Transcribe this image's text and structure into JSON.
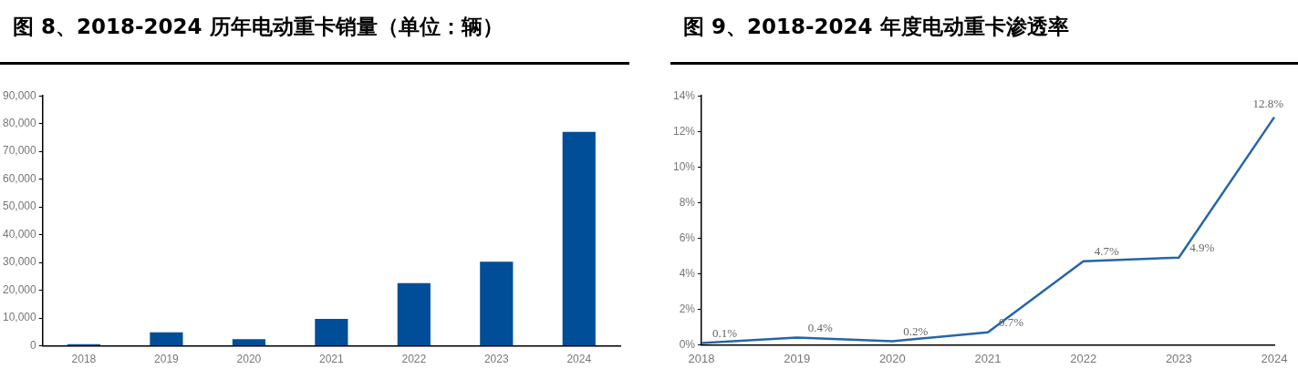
{
  "chart_data": [
    {
      "type": "bar",
      "title": "图 8、2018-2024 历年电动重卡销量（单位：辆）",
      "categories": [
        "2018",
        "2019",
        "2020",
        "2021",
        "2022",
        "2023",
        "2024"
      ],
      "values": [
        600,
        4900,
        2400,
        9700,
        22600,
        30300,
        77000
      ],
      "color": "#004e98",
      "ylim": [
        0,
        90000
      ],
      "yticks": [
        {
          "value": 0,
          "label": "0"
        },
        {
          "value": 10000,
          "label": "10,000"
        },
        {
          "value": 20000,
          "label": "20,000"
        },
        {
          "value": 30000,
          "label": "30,000"
        },
        {
          "value": 40000,
          "label": "40,000"
        },
        {
          "value": 50000,
          "label": "50,000"
        },
        {
          "value": 60000,
          "label": "60,000"
        },
        {
          "value": 70000,
          "label": "70,000"
        },
        {
          "value": 80000,
          "label": "80,000"
        },
        {
          "value": 90000,
          "label": "90,000"
        }
      ],
      "grid": false,
      "legend": false
    },
    {
      "type": "line",
      "title": "图 9、2018-2024 年度电动重卡渗透率",
      "categories": [
        "2018",
        "2019",
        "2020",
        "2021",
        "2022",
        "2023",
        "2024"
      ],
      "values": [
        0.1,
        0.4,
        0.2,
        0.7,
        4.7,
        4.9,
        12.8
      ],
      "value_labels": [
        "0.1%",
        "0.4%",
        "0.2%",
        "0.7%",
        "4.7%",
        "4.9%",
        "12.8%"
      ],
      "color": "#2566a8",
      "ylim": [
        0,
        14
      ],
      "yticks": [
        {
          "value": 0,
          "label": "0%"
        },
        {
          "value": 2,
          "label": "2%"
        },
        {
          "value": 4,
          "label": "4%"
        },
        {
          "value": 6,
          "label": "6%"
        },
        {
          "value": 8,
          "label": "8%"
        },
        {
          "value": 10,
          "label": "10%"
        },
        {
          "value": 12,
          "label": "12%"
        },
        {
          "value": 14,
          "label": "14%"
        }
      ],
      "grid": false,
      "legend": false,
      "marker": "none"
    }
  ]
}
